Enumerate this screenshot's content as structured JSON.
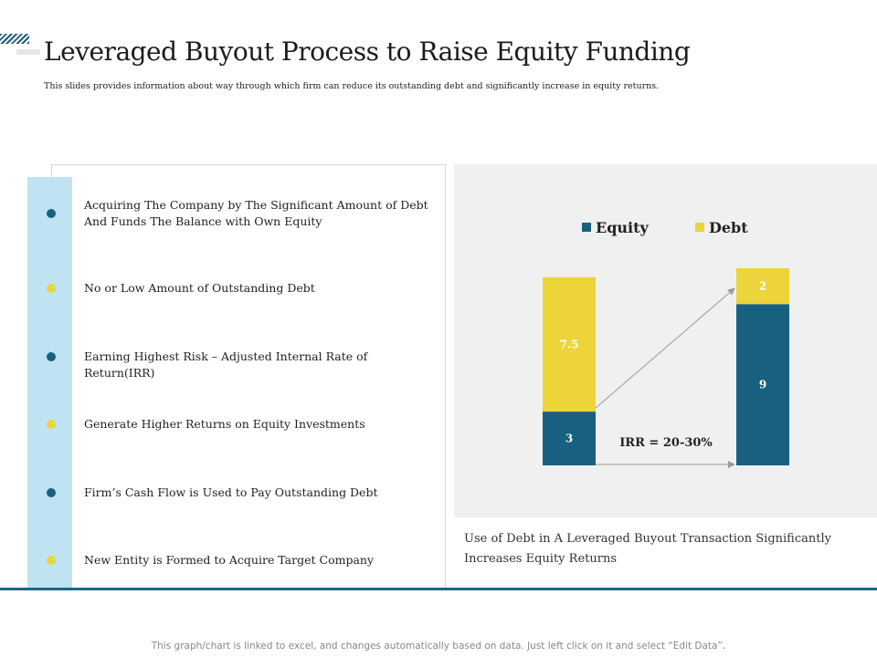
{
  "header": {
    "title": "Leveraged Buyout Process to Raise Equity Funding",
    "subtitle": "This slides provides information about way through which  firm can reduce its outstanding debt and significantly increase in equity returns."
  },
  "points": [
    {
      "text": "Acquiring The Company by The Significant Amount of Debt And Funds The Balance with Own Equity",
      "bullet_color": "blue"
    },
    {
      "text": "No or Low Amount of Outstanding Debt",
      "bullet_color": "yellow"
    },
    {
      "text": "Earning Highest Risk – Adjusted Internal Rate of Return(IRR)",
      "bullet_color": "blue"
    },
    {
      "text": "Generate Higher Returns on Equity Investments",
      "bullet_color": "yellow"
    },
    {
      "text": "Firm’s Cash Flow is Used to Pay Outstanding Debt",
      "bullet_color": "blue"
    },
    {
      "text": "New Entity is Formed to Acquire Target Company",
      "bullet_color": "yellow"
    }
  ],
  "chart_data": {
    "type": "bar",
    "stacked": true,
    "categories": [
      "",
      ""
    ],
    "series": [
      {
        "name": "Equity",
        "values": [
          3,
          9
        ],
        "color": "#18607f"
      },
      {
        "name": "Debt",
        "values": [
          7.5,
          2
        ],
        "color": "#ecd43a"
      }
    ],
    "annotation": "IRR = 20-30%",
    "legend_position": "top",
    "grid": false
  },
  "caption": "Use of Debt in A Leveraged Buyout Transaction Significantly Increases Equity Returns",
  "footer_note": "This graph/chart is linked to excel, and changes automatically based on data. Just left click on it and select “Edit Data”.",
  "colors": {
    "accent_blue": "#18607f",
    "accent_yellow": "#ecd43a",
    "strip_blue": "#bfe3f3",
    "rule_blue": "#1d6586"
  }
}
